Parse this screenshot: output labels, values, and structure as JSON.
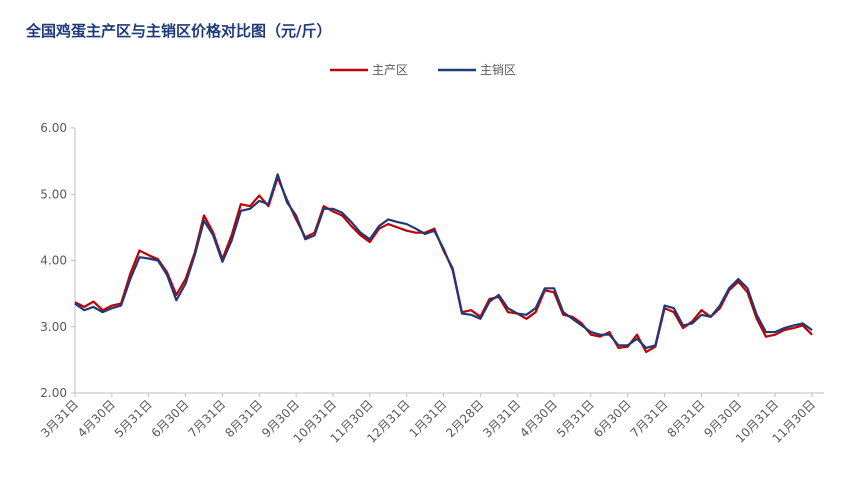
{
  "chart_data": {
    "type": "line",
    "title": "全国鸡蛋主产区与主销区价格对比图（元/斤）",
    "categories": [
      "3月31日",
      null,
      null,
      null,
      "4月30日",
      null,
      null,
      null,
      "5月31日",
      null,
      null,
      null,
      "6月30日",
      null,
      null,
      null,
      "7月31日",
      null,
      null,
      null,
      "8月31日",
      null,
      null,
      null,
      "9月30日",
      null,
      null,
      null,
      "10月31日",
      null,
      null,
      null,
      "11月30日",
      null,
      null,
      null,
      "12月31日",
      null,
      null,
      null,
      "1月31日",
      null,
      null,
      null,
      "2月28日",
      null,
      null,
      null,
      "3月31日",
      null,
      null,
      null,
      "4月30日",
      null,
      null,
      null,
      "5月31日",
      null,
      null,
      null,
      "6月30日",
      null,
      null,
      null,
      "7月31日",
      null,
      null,
      null,
      "8月31日",
      null,
      null,
      null,
      "9月30日",
      null,
      null,
      null,
      "10月31日",
      null,
      null,
      null,
      "11月30日"
    ],
    "series": [
      {
        "name": "主产区",
        "color": "#c00000",
        "values": [
          3.37,
          3.3,
          3.38,
          3.25,
          3.32,
          3.35,
          3.8,
          4.15,
          4.08,
          4.02,
          3.82,
          3.48,
          3.72,
          4.12,
          4.68,
          4.42,
          4.02,
          4.38,
          4.85,
          4.82,
          4.98,
          4.82,
          5.25,
          4.92,
          4.62,
          4.35,
          4.42,
          4.82,
          4.74,
          4.68,
          4.52,
          4.38,
          4.28,
          4.48,
          4.55,
          4.5,
          4.45,
          4.42,
          4.42,
          4.48,
          4.15,
          3.88,
          3.22,
          3.25,
          3.15,
          3.42,
          3.45,
          3.22,
          3.2,
          3.12,
          3.22,
          3.55,
          3.52,
          3.18,
          3.15,
          3.05,
          2.88,
          2.85,
          2.92,
          2.68,
          2.7,
          2.88,
          2.62,
          2.7,
          3.28,
          3.22,
          2.98,
          3.08,
          3.25,
          3.15,
          3.28,
          3.55,
          3.68,
          3.52,
          3.12,
          2.85,
          2.88,
          2.95,
          2.98,
          3.02,
          2.88
        ]
      },
      {
        "name": "主销区",
        "color": "#1f3a7a",
        "values": [
          3.35,
          3.25,
          3.3,
          3.22,
          3.28,
          3.32,
          3.72,
          4.05,
          4.03,
          4.0,
          3.78,
          3.4,
          3.65,
          4.08,
          4.6,
          4.38,
          3.98,
          4.3,
          4.75,
          4.78,
          4.9,
          4.85,
          5.3,
          4.88,
          4.68,
          4.32,
          4.38,
          4.78,
          4.78,
          4.72,
          4.58,
          4.42,
          4.32,
          4.52,
          4.62,
          4.58,
          4.55,
          4.48,
          4.4,
          4.45,
          4.18,
          3.85,
          3.2,
          3.18,
          3.12,
          3.38,
          3.48,
          3.28,
          3.2,
          3.18,
          3.28,
          3.58,
          3.58,
          3.22,
          3.12,
          3.02,
          2.92,
          2.88,
          2.88,
          2.72,
          2.72,
          2.82,
          2.68,
          2.72,
          3.32,
          3.28,
          3.02,
          3.05,
          3.18,
          3.15,
          3.32,
          3.58,
          3.72,
          3.58,
          3.18,
          2.92,
          2.92,
          2.98,
          3.02,
          3.05,
          2.95
        ]
      }
    ],
    "ylim": [
      2,
      6
    ],
    "yticks": [
      {
        "value": 2,
        "label": "2.00"
      },
      {
        "value": 3,
        "label": "3.00"
      },
      {
        "value": 4,
        "label": "4.00"
      },
      {
        "value": 5,
        "label": "5.00"
      },
      {
        "value": 6,
        "label": "6.00"
      }
    ]
  }
}
